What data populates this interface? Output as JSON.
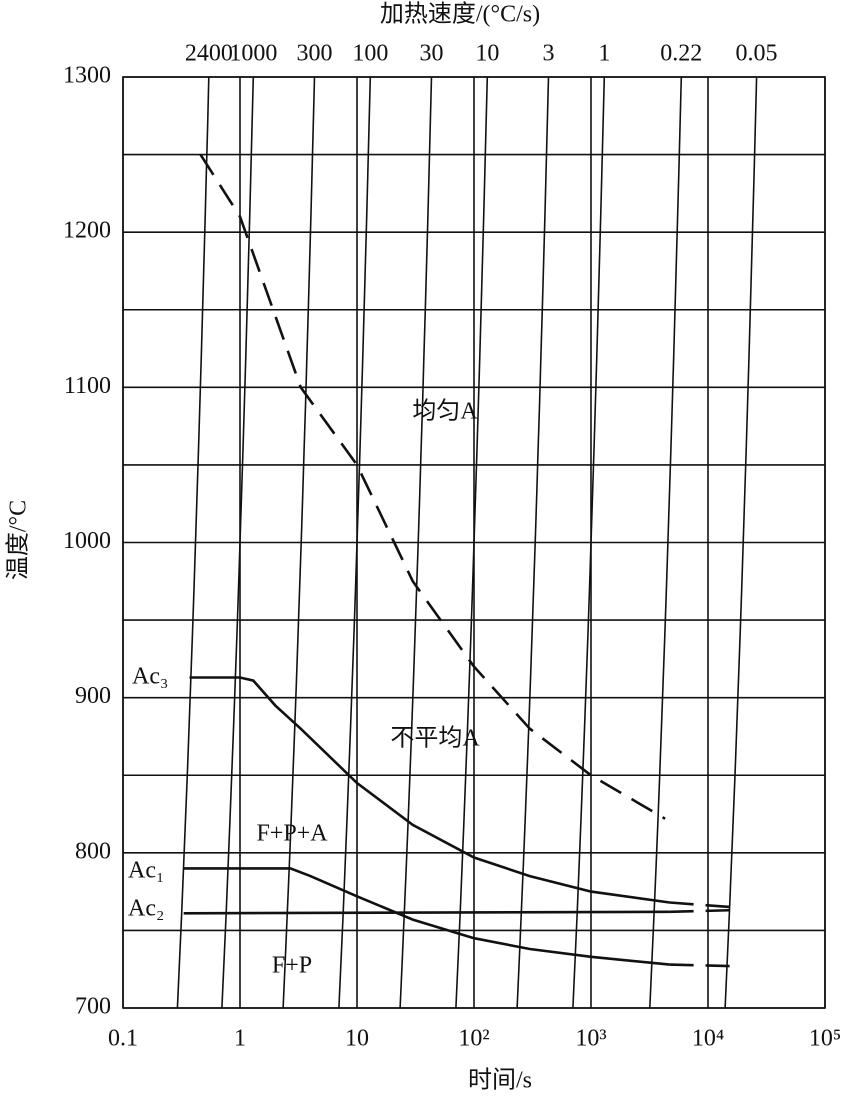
{
  "chart_data": {
    "type": "line",
    "title": "加热速度/(°C/s)",
    "xlabel": "时间/s",
    "ylabel": "温度/°C",
    "xscale": "log",
    "xlim": [
      0.1,
      100000
    ],
    "xticks": [
      0.1,
      1,
      10,
      {
        "value": 100,
        "label": "10²"
      },
      {
        "value": 1000,
        "label": "10³"
      },
      {
        "value": 10000,
        "label": "10⁴"
      },
      {
        "value": 100000,
        "label": "10⁵"
      }
    ],
    "ylim": [
      700,
      1300
    ],
    "yticks": [
      700,
      800,
      900,
      1000,
      1100,
      1200,
      1300
    ],
    "x2ticks": [
      2400,
      1000,
      300,
      100,
      30,
      10,
      3,
      1,
      0.22,
      0.05
    ],
    "grid": true,
    "color": "#111111",
    "series": [
      {
        "style": "solid",
        "x": [
          0.37,
          1.0,
          1.3,
          2,
          3.3,
          10,
          30,
          100,
          300,
          1000,
          4700
        ],
        "values": [
          913,
          913,
          911,
          895,
          880,
          845,
          818,
          797,
          785,
          775,
          768
        ]
      },
      {
        "style": "dashed",
        "x": [
          4700,
          16000
        ],
        "values": [
          768,
          765
        ]
      },
      {
        "style": "solid",
        "x": [
          0.33,
          1,
          2.7,
          4,
          10,
          30,
          100,
          300,
          1000,
          4700
        ],
        "values": [
          790,
          790,
          790,
          785,
          772,
          757,
          745,
          738,
          733,
          728
        ]
      },
      {
        "style": "dashed",
        "x": [
          4700,
          16000
        ],
        "values": [
          728,
          727
        ]
      },
      {
        "style": "solid",
        "x": [
          0.33,
          4700
        ],
        "values": [
          761,
          762
        ]
      },
      {
        "style": "dashed",
        "x": [
          4700,
          16000
        ],
        "values": [
          762,
          763
        ]
      },
      {
        "style": "dashed",
        "x": [
          0.46,
          1,
          3.3,
          10,
          30,
          100,
          300,
          1000,
          4300
        ],
        "values": [
          1250,
          1210,
          1100,
          1050,
          975,
          920,
          880,
          850,
          822
        ]
      }
    ],
    "annotations": [
      "均匀A",
      "不平均A",
      "F+P+A",
      "F+P",
      "Ac₃",
      "Ac₁",
      "Ac₂"
    ]
  }
}
